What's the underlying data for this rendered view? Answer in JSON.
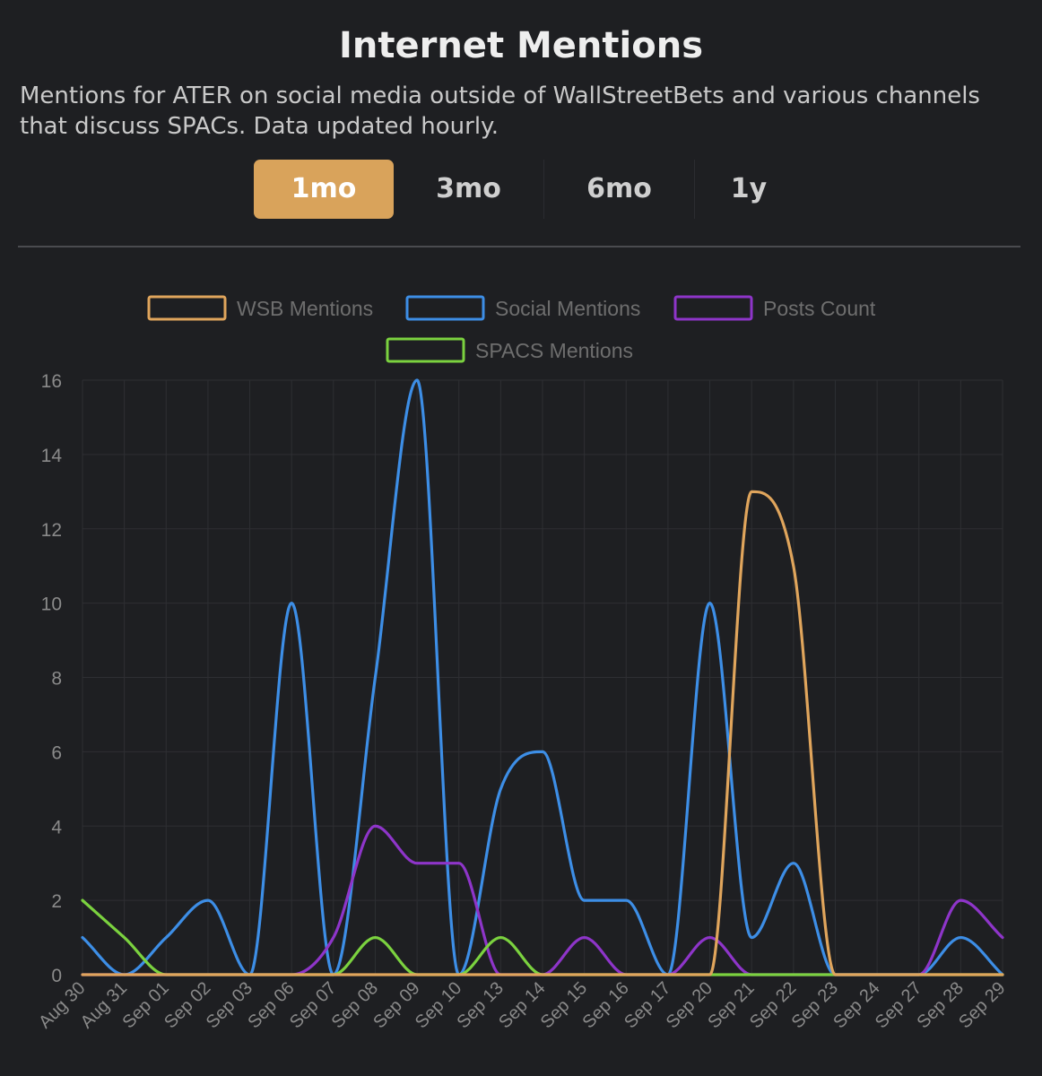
{
  "header": {
    "title": "Internet Mentions",
    "subtitle": "Mentions for ATER on social media outside of WallStreetBets and various channels that discuss SPACs. Data updated hourly."
  },
  "tabs": [
    {
      "label": "1mo",
      "active": true
    },
    {
      "label": "3mo",
      "active": false
    },
    {
      "label": "6mo",
      "active": false
    },
    {
      "label": "1y",
      "active": false
    }
  ],
  "colors": {
    "accent": "#d9a35b",
    "background": "#1e1f22"
  },
  "chart_data": {
    "type": "line",
    "title": "",
    "xlabel": "",
    "ylabel": "",
    "ylim": [
      0,
      16
    ],
    "yticks": [
      0,
      2,
      4,
      6,
      8,
      10,
      12,
      14,
      16
    ],
    "grid": true,
    "legend_position": "top",
    "categories": [
      "Aug 30",
      "Aug 31",
      "Sep 01",
      "Sep 02",
      "Sep 03",
      "Sep 06",
      "Sep 07",
      "Sep 08",
      "Sep 09",
      "Sep 10",
      "Sep 13",
      "Sep 14",
      "Sep 15",
      "Sep 16",
      "Sep 17",
      "Sep 20",
      "Sep 21",
      "Sep 22",
      "Sep 23",
      "Sep 24",
      "Sep 27",
      "Sep 28",
      "Sep 29"
    ],
    "series": [
      {
        "name": "WSB Mentions",
        "color": "#e0a55c",
        "values": [
          0,
          0,
          0,
          0,
          0,
          0,
          0,
          0,
          0,
          0,
          0,
          0,
          0,
          0,
          0,
          0,
          13,
          11,
          0,
          0,
          0,
          0,
          0
        ]
      },
      {
        "name": "Social Mentions",
        "color": "#3d8ee6",
        "values": [
          1,
          0,
          1,
          2,
          0,
          10,
          0,
          8,
          16,
          0,
          5,
          6,
          2,
          2,
          0,
          10,
          1,
          3,
          0,
          0,
          0,
          1,
          0
        ]
      },
      {
        "name": "Posts Count",
        "color": "#8e35c9",
        "values": [
          0,
          0,
          0,
          0,
          0,
          0,
          1,
          4,
          3,
          3,
          0,
          0,
          1,
          0,
          0,
          1,
          0,
          0,
          0,
          0,
          0,
          2,
          1
        ]
      },
      {
        "name": "SPACS Mentions",
        "color": "#7bd23f",
        "values": [
          2,
          1,
          0,
          0,
          0,
          0,
          0,
          1,
          0,
          0,
          1,
          0,
          0,
          0,
          0,
          0,
          0,
          0,
          0,
          0,
          0,
          0,
          0
        ]
      }
    ]
  }
}
